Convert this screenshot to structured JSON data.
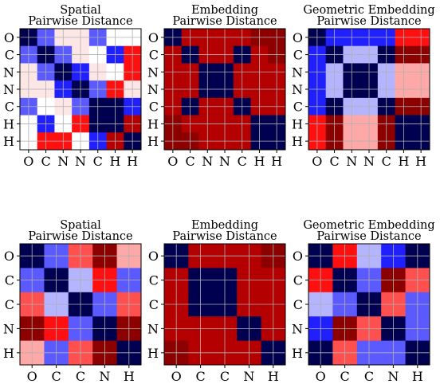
{
  "colors": {
    "navy": "#000050",
    "blue": "#2020ff",
    "blue_mid": "#5a5aff",
    "lavender": "#b4b4ff",
    "white": "#ffffff",
    "pink_pale": "#fde6e6",
    "pink": "#ffa8a8",
    "red_light": "#ff5050",
    "red": "#ff1010",
    "red_dark": "#b40000",
    "maroon": "#8c0000"
  },
  "chart_data": [
    {
      "type": "heatmap",
      "title_lines": [
        "Spatial",
        "Pairwise Distance"
      ],
      "labels": [
        "O",
        "C",
        "N",
        "N",
        "C",
        "H",
        "H"
      ],
      "grid": true,
      "cells": [
        [
          "navy",
          "blue_mid",
          "pink_pale",
          "pink_pale",
          "blue_mid",
          "white",
          "white"
        ],
        [
          "blue_mid",
          "navy",
          "blue_mid",
          "pink_pale",
          "white",
          "blue",
          "red"
        ],
        [
          "pink_pale",
          "blue_mid",
          "navy",
          "blue",
          "pink_pale",
          "white",
          "red"
        ],
        [
          "pink_pale",
          "pink_pale",
          "blue",
          "navy",
          "blue_mid",
          "red",
          "pink_pale"
        ],
        [
          "blue_mid",
          "white",
          "pink_pale",
          "blue_mid",
          "navy",
          "navy",
          "blue"
        ],
        [
          "white",
          "blue",
          "white",
          "red",
          "navy",
          "navy",
          "red_dark"
        ],
        [
          "white",
          "red",
          "red",
          "white",
          "blue",
          "red_dark",
          "navy"
        ]
      ]
    },
    {
      "type": "heatmap",
      "title_lines": [
        "Embedding",
        "Pairwise Distance"
      ],
      "labels": [
        "O",
        "C",
        "N",
        "N",
        "C",
        "H",
        "H"
      ],
      "grid": true,
      "cells": [
        [
          "navy",
          "red_dark",
          "red_dark",
          "red_dark",
          "red_dark",
          "maroon",
          "maroon"
        ],
        [
          "red_dark",
          "navy",
          "red_dark",
          "red_dark",
          "navy",
          "red_dark",
          "maroon"
        ],
        [
          "red_dark",
          "red_dark",
          "navy",
          "navy",
          "red_dark",
          "red_dark",
          "red_dark"
        ],
        [
          "red_dark",
          "red_dark",
          "navy",
          "navy",
          "red_dark",
          "red_dark",
          "red_dark"
        ],
        [
          "red_dark",
          "navy",
          "red_dark",
          "red_dark",
          "navy",
          "red_dark",
          "red_dark"
        ],
        [
          "maroon",
          "red_dark",
          "red_dark",
          "red_dark",
          "red_dark",
          "navy",
          "navy"
        ],
        [
          "maroon",
          "maroon",
          "red_dark",
          "red_dark",
          "red_dark",
          "navy",
          "navy"
        ]
      ]
    },
    {
      "type": "heatmap",
      "title_lines": [
        "Geometric Embedding",
        "Pairwise Distance"
      ],
      "labels": [
        "O",
        "C",
        "N",
        "N",
        "C",
        "H",
        "H"
      ],
      "grid": true,
      "cells": [
        [
          "navy",
          "blue",
          "blue",
          "blue",
          "blue",
          "red",
          "red"
        ],
        [
          "blue",
          "navy",
          "lavender",
          "lavender",
          "navy",
          "maroon",
          "maroon"
        ],
        [
          "blue",
          "lavender",
          "navy",
          "navy",
          "lavender",
          "pink",
          "pink"
        ],
        [
          "blue",
          "lavender",
          "navy",
          "navy",
          "lavender",
          "pink",
          "pink"
        ],
        [
          "blue",
          "navy",
          "lavender",
          "lavender",
          "navy",
          "maroon",
          "maroon"
        ],
        [
          "red",
          "maroon",
          "pink",
          "pink",
          "maroon",
          "navy",
          "navy"
        ],
        [
          "red",
          "maroon",
          "pink",
          "pink",
          "maroon",
          "navy",
          "navy"
        ]
      ]
    },
    {
      "type": "heatmap",
      "title_lines": [
        "Spatial",
        "Pairwise Distance"
      ],
      "labels": [
        "O",
        "C",
        "C",
        "N",
        "H"
      ],
      "grid": true,
      "cells": [
        [
          "navy",
          "blue_mid",
          "red_light",
          "maroon",
          "pink"
        ],
        [
          "blue_mid",
          "navy",
          "lavender",
          "red",
          "blue_mid"
        ],
        [
          "red_light",
          "lavender",
          "navy",
          "blue_mid",
          "red_light"
        ],
        [
          "maroon",
          "red",
          "blue_mid",
          "navy",
          "maroon"
        ],
        [
          "pink",
          "blue_mid",
          "red_light",
          "maroon",
          "navy"
        ]
      ]
    },
    {
      "type": "heatmap",
      "title_lines": [
        "Embedding",
        "Pairwise Distance"
      ],
      "labels": [
        "O",
        "C",
        "C",
        "N",
        "H"
      ],
      "grid": true,
      "cells": [
        [
          "navy",
          "red_dark",
          "red_dark",
          "red_dark",
          "maroon"
        ],
        [
          "red_dark",
          "navy",
          "navy",
          "red_dark",
          "red_dark"
        ],
        [
          "red_dark",
          "navy",
          "navy",
          "red_dark",
          "red_dark"
        ],
        [
          "red_dark",
          "red_dark",
          "red_dark",
          "navy",
          "red_dark"
        ],
        [
          "maroon",
          "red_dark",
          "red_dark",
          "red_dark",
          "navy"
        ]
      ]
    },
    {
      "type": "heatmap",
      "title_lines": [
        "Geometric Embedding",
        "Pairwise Distance"
      ],
      "labels": [
        "O",
        "C",
        "C",
        "N",
        "H"
      ],
      "grid": true,
      "cells": [
        [
          "navy",
          "red",
          "lavender",
          "blue",
          "navy"
        ],
        [
          "red",
          "navy",
          "blue_mid",
          "maroon",
          "red_light"
        ],
        [
          "lavender",
          "blue_mid",
          "navy",
          "red_light",
          "blue_mid"
        ],
        [
          "blue",
          "maroon",
          "red_light",
          "navy",
          "blue_mid"
        ],
        [
          "navy",
          "red_light",
          "blue_mid",
          "blue_mid",
          "navy"
        ]
      ]
    }
  ]
}
